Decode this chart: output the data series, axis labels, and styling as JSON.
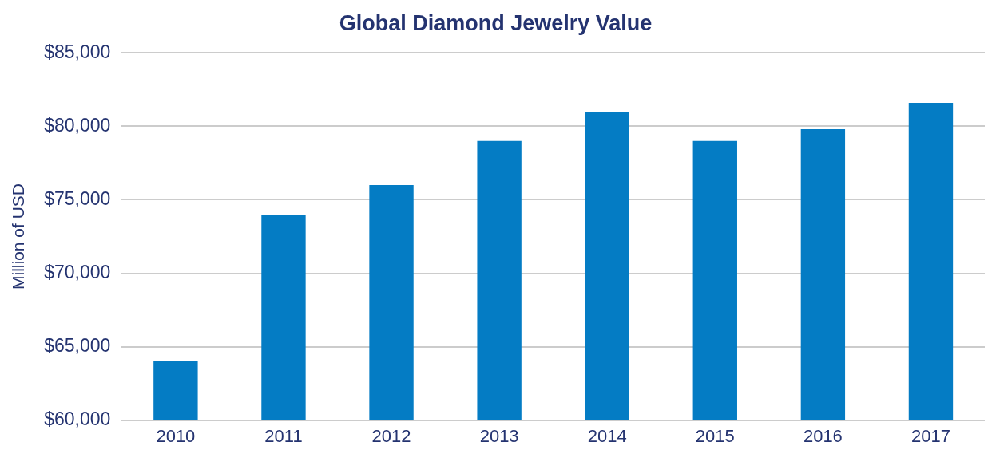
{
  "chart_data": {
    "type": "bar",
    "title": "Global Diamond Jewelry Value",
    "ylabel": "Million of USD",
    "categories": [
      "2010",
      "2011",
      "2012",
      "2013",
      "2014",
      "2015",
      "2016",
      "2017"
    ],
    "values": [
      64000,
      74000,
      76000,
      79000,
      81000,
      79000,
      79800,
      81600
    ],
    "color": "#047cc4",
    "ylim": [
      60000,
      85000
    ],
    "yticks": [
      {
        "value": 60000,
        "label": "$60,000"
      },
      {
        "value": 65000,
        "label": "$65,000"
      },
      {
        "value": 70000,
        "label": "$70,000"
      },
      {
        "value": 75000,
        "label": "$75,000"
      },
      {
        "value": 80000,
        "label": "$80,000"
      },
      {
        "value": 85000,
        "label": "$85,000"
      }
    ],
    "grid": "y",
    "legend": false
  }
}
